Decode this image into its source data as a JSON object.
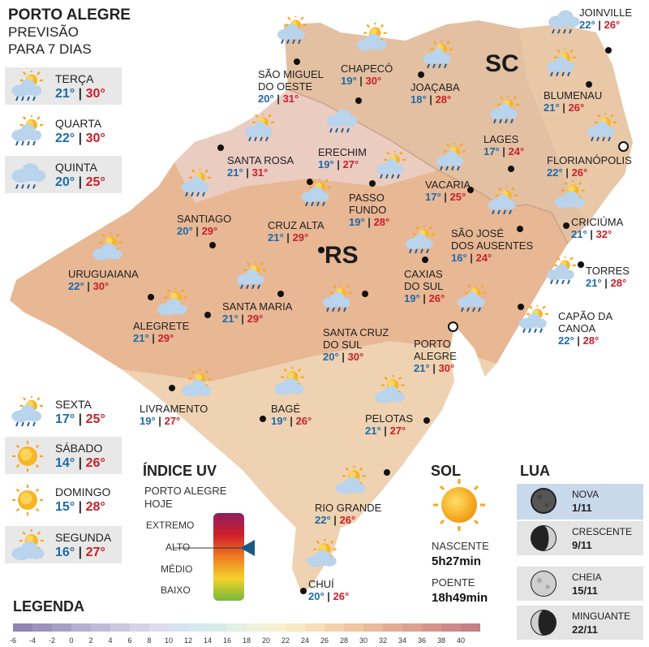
{
  "header": {
    "line1": "PORTO ALEGRE",
    "line2": "PREVISÃO",
    "line3": "PARA 7 DIAS"
  },
  "forecast": [
    {
      "day": "TERÇA",
      "min": "21°",
      "max": "30°",
      "icon": "sun-cloud-rain-icon",
      "shaded": true
    },
    {
      "day": "QUARTA",
      "min": "22°",
      "max": "30°",
      "icon": "sun-cloud-rain-icon",
      "shaded": false
    },
    {
      "day": "QUINTA",
      "min": "20°",
      "max": "25°",
      "icon": "cloud-rain-icon",
      "shaded": true
    },
    {
      "day": "SEXTA",
      "min": "17°",
      "max": "25°",
      "icon": "sun-cloud-rain-icon",
      "shaded": false
    },
    {
      "day": "SÁBADO",
      "min": "14°",
      "max": "26°",
      "icon": "sun-icon",
      "shaded": true
    },
    {
      "day": "DOMINGO",
      "min": "15°",
      "max": "28°",
      "icon": "sun-icon",
      "shaded": false
    },
    {
      "day": "SEGUNDA",
      "min": "16°",
      "max": "27°",
      "icon": "sun-cloud-icon",
      "shaded": true
    }
  ],
  "states": {
    "sc": "SC",
    "rs": "RS"
  },
  "cities": [
    {
      "name": "JOINVILLE",
      "min": "22°",
      "max": "26°",
      "icon": "cloud-rain-icon"
    },
    {
      "name": "CHAPECÓ",
      "min": "19°",
      "max": "30°",
      "icon": "sun-cloud-icon"
    },
    {
      "name": "SÃO MIGUEL DO OESTE",
      "min": "20°",
      "max": "31°",
      "icon": "sun-cloud-rain-icon"
    },
    {
      "name": "JOAÇABA",
      "min": "18°",
      "max": "28°",
      "icon": "sun-cloud-rain-icon"
    },
    {
      "name": "BLUMENAU",
      "min": "21°",
      "max": "26°",
      "icon": "sun-cloud-rain-icon"
    },
    {
      "name": "LAGES",
      "min": "17°",
      "max": "24°",
      "icon": "sun-cloud-rain-icon"
    },
    {
      "name": "FLORIANÓPOLIS",
      "min": "22°",
      "max": "26°",
      "icon": "sun-cloud-rain-icon"
    },
    {
      "name": "SANTA ROSA",
      "min": "21°",
      "max": "31°",
      "icon": "sun-cloud-rain-icon"
    },
    {
      "name": "ERECHIM",
      "min": "19°",
      "max": "27°",
      "icon": "cloud-rain-icon"
    },
    {
      "name": "VACARIA",
      "min": "17°",
      "max": "25°",
      "icon": "sun-cloud-rain-icon"
    },
    {
      "name": "PASSO FUNDO",
      "min": "19°",
      "max": "28°",
      "icon": "sun-cloud-rain-icon"
    },
    {
      "name": "SANTIAGO",
      "min": "20°",
      "max": "29°",
      "icon": "sun-cloud-rain-icon"
    },
    {
      "name": "CRUZ ALTA",
      "min": "21°",
      "max": "29°",
      "icon": "sun-cloud-rain-icon"
    },
    {
      "name": "SÃO JOSÉ DOS AUSENTES",
      "min": "16°",
      "max": "24°",
      "icon": "sun-cloud-rain-icon"
    },
    {
      "name": "CRICIÚMA",
      "min": "21°",
      "max": "32°",
      "icon": "sun-cloud-icon"
    },
    {
      "name": "URUGUAIANA",
      "min": "22°",
      "max": "30°",
      "icon": "sun-cloud-icon"
    },
    {
      "name": "TORRES",
      "min": "21°",
      "max": "28°",
      "icon": "sun-cloud-rain-icon"
    },
    {
      "name": "CAXIAS DO SUL",
      "min": "19°",
      "max": "26°",
      "icon": "sun-cloud-rain-icon"
    },
    {
      "name": "SANTA MARIA",
      "min": "21°",
      "max": "29°",
      "icon": "sun-cloud-rain-icon"
    },
    {
      "name": "ALEGRETE",
      "min": "21°",
      "max": "29°",
      "icon": "sun-cloud-icon"
    },
    {
      "name": "SANTA CRUZ DO SUL",
      "min": "20°",
      "max": "30°",
      "icon": "sun-cloud-rain-icon"
    },
    {
      "name": "CAPÃO DA CANOA",
      "min": "22°",
      "max": "28°",
      "icon": "sun-cloud-rain-icon"
    },
    {
      "name": "PORTO ALEGRE",
      "min": "21°",
      "max": "30°",
      "icon": "sun-cloud-rain-icon"
    },
    {
      "name": "LIVRAMENTO",
      "min": "19°",
      "max": "27°",
      "icon": "sun-cloud-icon"
    },
    {
      "name": "BAGÉ",
      "min": "19°",
      "max": "26°",
      "icon": "sun-cloud-icon"
    },
    {
      "name": "PELOTAS",
      "min": "21°",
      "max": "27°",
      "icon": "sun-cloud-icon"
    },
    {
      "name": "RIO GRANDE",
      "min": "22°",
      "max": "26°",
      "icon": "sun-cloud-icon"
    },
    {
      "name": "CHUÍ",
      "min": "20°",
      "max": "26°",
      "icon": "sun-cloud-icon"
    }
  ],
  "uv": {
    "title": "ÍNDICE UV",
    "sub1": "PORTO ALEGRE",
    "sub2": "HOJE",
    "levels": [
      "EXTREMO",
      "ALTO",
      "MÉDIO",
      "BAIXO"
    ],
    "current": "ALTO"
  },
  "sol": {
    "title": "SOL",
    "nascente_label": "NASCENTE",
    "nascente": "5h27min",
    "poente_label": "POENTE",
    "poente": "18h49min"
  },
  "lua": {
    "title": "LUA",
    "phases": [
      {
        "name": "NOVA",
        "date": "1/11",
        "icon": "new-moon-icon"
      },
      {
        "name": "CRESCENTE",
        "date": "9/11",
        "icon": "first-quarter-moon-icon"
      },
      {
        "name": "CHEIA",
        "date": "15/11",
        "icon": "full-moon-icon"
      },
      {
        "name": "MINGUANTE",
        "date": "22/11",
        "icon": "last-quarter-moon-icon"
      }
    ]
  },
  "legend": {
    "title": "LEGENDA",
    "ticks": [
      "-6",
      "-4",
      "-2",
      "0",
      "2",
      "4",
      "6",
      "8",
      "10",
      "12",
      "14",
      "16",
      "18",
      "20",
      "22",
      "24",
      "26",
      "28",
      "30",
      "32",
      "34",
      "36",
      "38",
      "40"
    ],
    "colors": [
      "#8f86b5",
      "#9b93bd",
      "#a7a0c6",
      "#b4aecf",
      "#c0bad8",
      "#ccc7e0",
      "#d6d2e7",
      "#dcdcec",
      "#d7e3ef",
      "#d4e8ef",
      "#d6ece8",
      "#e3f0e4",
      "#eef2db",
      "#f6f0d2",
      "#f9e9c5",
      "#f7dfb8",
      "#f3d2aa",
      "#eec6a1",
      "#e9b99a",
      "#e3ad94",
      "#dca190",
      "#d5958c",
      "#cd8a88",
      "#c58084"
    ]
  }
}
